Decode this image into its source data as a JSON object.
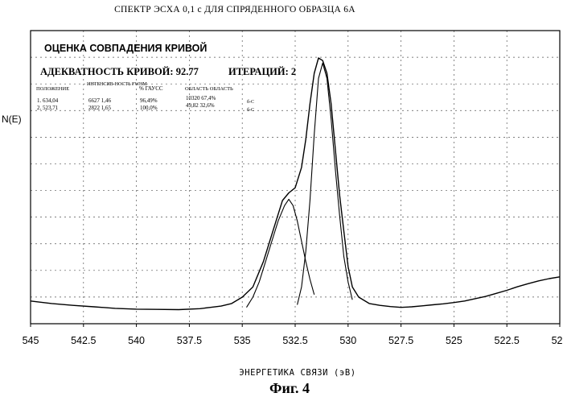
{
  "chart_data": {
    "type": "line",
    "title": "СПЕКТР ЭСХА 0,1 с ДЛЯ СПРЯДЕННОГО ОБРАЗЦА 6А",
    "xlabel": "ЭНЕРГЕТИКА СВЯЗИ (эВ)",
    "ylabel": "N(E)",
    "caption": "Фиг. 4",
    "x_reversed": true,
    "xlim": [
      545,
      520
    ],
    "ylim": [
      0,
      100
    ],
    "grid": true,
    "x_ticks": [
      545,
      542.5,
      540,
      537.5,
      535,
      532.5,
      530,
      527.5,
      525,
      522.5,
      520
    ],
    "x_tick_labels": [
      "545",
      "542.5",
      "540",
      "537.5",
      "535",
      "532.5",
      "530",
      "527.5",
      "525",
      "522.5",
      "520"
    ],
    "fit_box": {
      "title": "ОЦЕНКА СОВПАДЕНИЯ КРИВОЙ",
      "fit_label": "АДЕКВАТНОСТЬ КРИВОЙ: 92.77",
      "iter_label": "ИТЕРАЦИЙ: 2",
      "col_position": "ПОЛОЖЕНИЕ",
      "col_intensity": "ИНТЕНСИВ-НОСТЬ FWHM",
      "col_gauss": "% ГАУСС",
      "col_area": "ОБЛАСТЬ ОБЛАСТЬ",
      "rows": [
        [
          "1. 634,04",
          "6627 1,46",
          "96,49%",
          "10320 67,4%",
          "б-С"
        ],
        [
          "2. 523,71",
          "2822 1,65",
          "100,0%",
          "49,82 32,6%",
          "б-С"
        ]
      ]
    },
    "series": [
      {
        "x": [
          545,
          544,
          543,
          542,
          541,
          540,
          539,
          538,
          537,
          536.5,
          536,
          535.5,
          535,
          534.5,
          534,
          533.7,
          533.4,
          533.1,
          532.8,
          532.5,
          532.2,
          532,
          531.8,
          531.6,
          531.4,
          531.2,
          531,
          530.8,
          530.6,
          530.4,
          530.2,
          530,
          529.8,
          529.5,
          529,
          528.5,
          528,
          527.5,
          527,
          526.5,
          526,
          525.5,
          525,
          524.5,
          524,
          523.5,
          523,
          522.5,
          522,
          521.5,
          521,
          520.5,
          520
        ],
        "y": [
          4.5,
          3.5,
          2.8,
          2.2,
          1.6,
          1.3,
          1.2,
          1.1,
          1.5,
          2.0,
          2.5,
          3.5,
          6.0,
          10,
          20,
          28,
          36,
          44,
          47,
          49,
          57,
          68,
          82,
          94,
          100,
          99,
          94,
          82,
          64,
          46,
          32,
          18,
          10,
          6,
          3.5,
          2.8,
          2.3,
          2.0,
          2.2,
          2.6,
          3.0,
          3.4,
          3.9,
          4.5,
          5.4,
          6.3,
          7.5,
          8.7,
          10.1,
          11.3,
          12.4,
          13.3,
          14.0
        ]
      },
      {
        "x": [
          534.8,
          534.5,
          534.2,
          533.9,
          533.6,
          533.3,
          533.0,
          532.8,
          532.6,
          532.4,
          532.2,
          532.0,
          531.8,
          531.6
        ],
        "y": [
          2,
          6,
          12,
          20,
          28,
          36,
          42,
          44.5,
          42,
          36,
          28,
          20,
          13,
          7
        ]
      },
      {
        "x": [
          532.4,
          532.2,
          532.0,
          531.8,
          531.6,
          531.4,
          531.2,
          531.0,
          530.8,
          530.6,
          530.4,
          530.2,
          530.0,
          529.8
        ],
        "y": [
          3,
          10,
          24,
          44,
          70,
          92,
          98,
          92,
          76,
          56,
          38,
          22,
          12,
          5
        ]
      }
    ]
  }
}
